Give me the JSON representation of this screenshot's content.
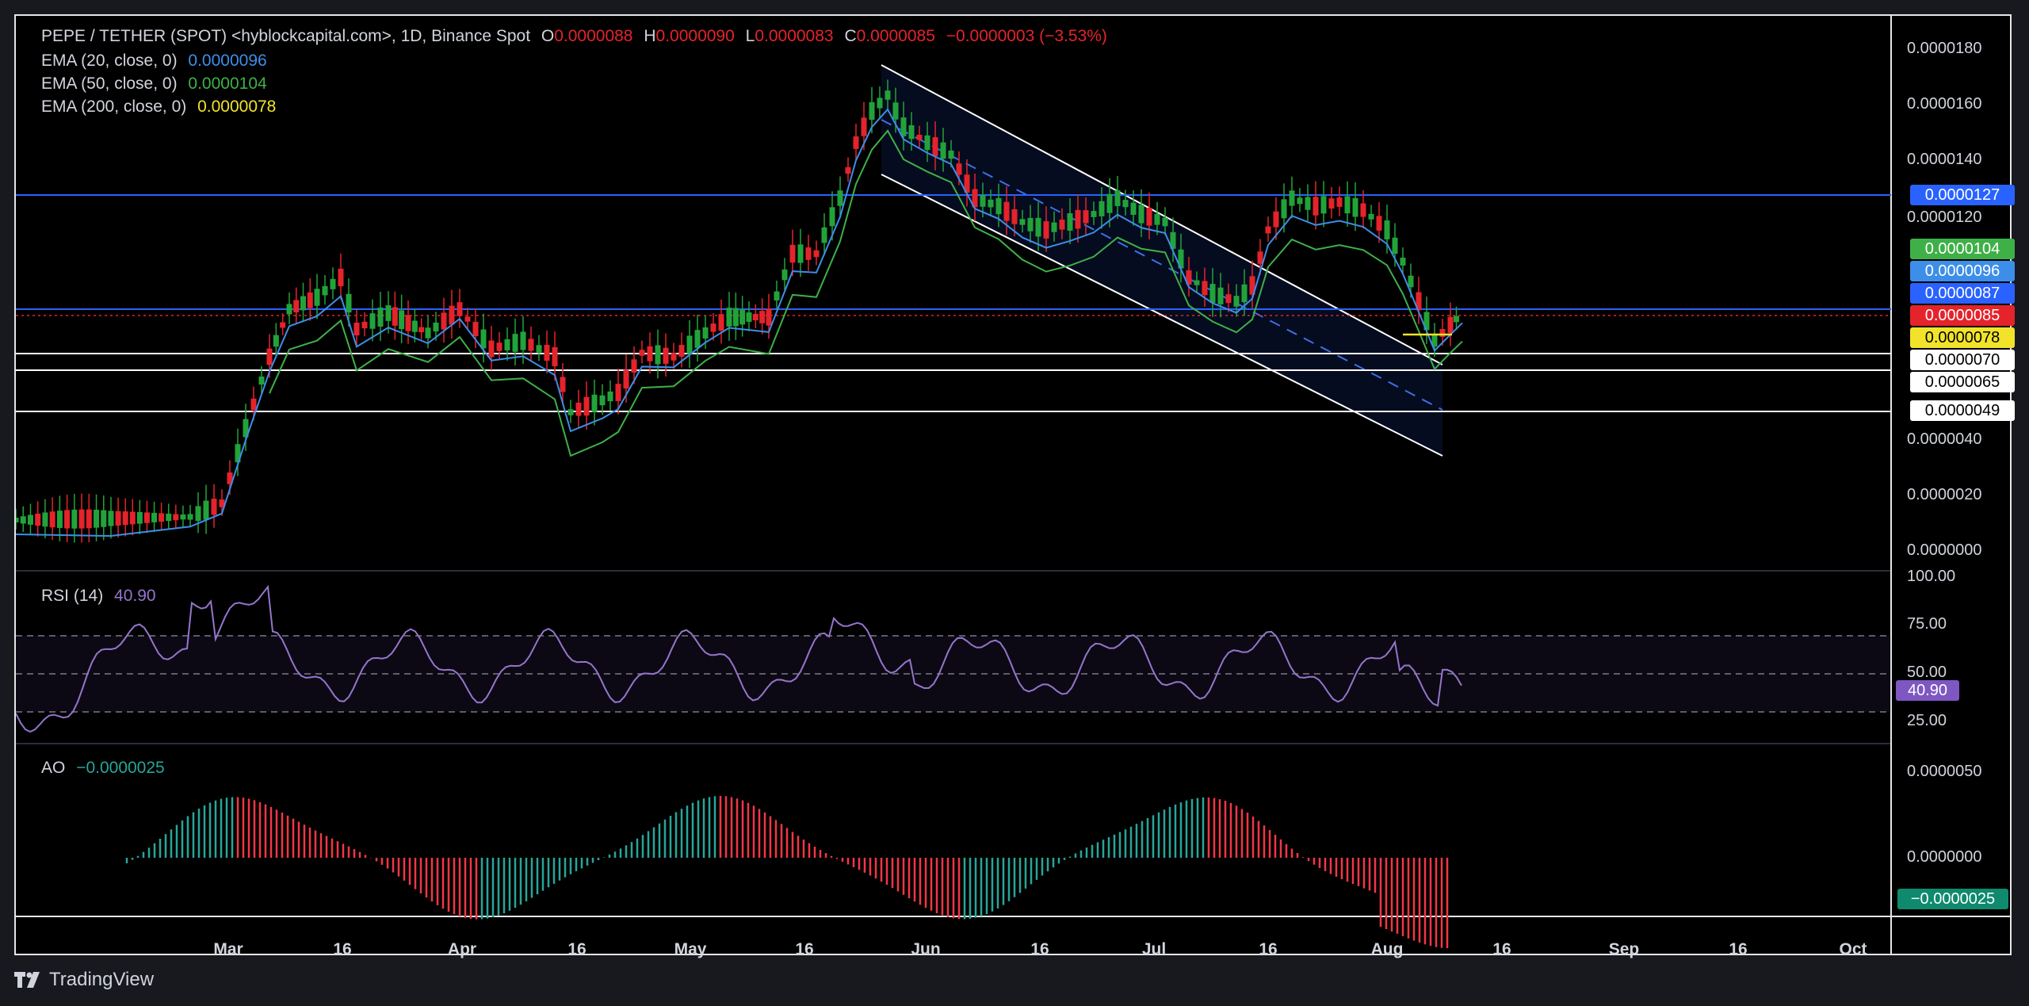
{
  "legend": {
    "symbol": "PEPE / TETHER (SPOT) <hyblockcapital.com>, 1D, Binance Spot",
    "o_label": "O",
    "o_value": "0.0000088",
    "h_label": "H",
    "h_value": "0.0000090",
    "l_label": "L",
    "l_value": "0.0000083",
    "c_label": "C",
    "c_value": "0.0000085",
    "change": "−0.0000003 (−3.53%)",
    "indicators": [
      {
        "label": "EMA (20, close, 0)",
        "value": "0.0000096",
        "color": "#3d8ee8"
      },
      {
        "label": "EMA (50, close, 0)",
        "value": "0.0000104",
        "color": "#3fb048"
      },
      {
        "label": "EMA (200, close, 0)",
        "value": "0.0000078",
        "color": "#f2e32a"
      }
    ]
  },
  "price_axis": {
    "ticks": [
      "0.0000180",
      "0.0000160",
      "0.0000140",
      "0.0000120",
      "0.0000040",
      "0.0000020",
      "0.0000000"
    ]
  },
  "price_labels": [
    {
      "text": "0.0000127",
      "bg": "#2962ff",
      "fg": "#ffffff"
    },
    {
      "text": "0.0000104",
      "bg": "#3fb048",
      "fg": "#ffffff"
    },
    {
      "text": "0.0000096",
      "bg": "#3d8ee8",
      "fg": "#ffffff"
    },
    {
      "text": "0.0000087",
      "bg": "#2962ff",
      "fg": "#ffffff"
    },
    {
      "text": "0.0000085",
      "bg": "#e5232b",
      "fg": "#ffffff"
    },
    {
      "text": "0.0000078",
      "bg": "#f2e32a",
      "fg": "#000000"
    },
    {
      "text": "0.0000070",
      "bg": "#ffffff",
      "fg": "#000000"
    },
    {
      "text": "0.0000065",
      "bg": "#ffffff",
      "fg": "#000000"
    },
    {
      "text": "0.0000049",
      "bg": "#ffffff",
      "fg": "#000000"
    }
  ],
  "rsi": {
    "label": "RSI (14)",
    "value": "40.90",
    "color": "#9575cd",
    "ticks": [
      "100.00",
      "75.00",
      "50.00",
      "25.00"
    ],
    "badge": "40.90"
  },
  "ao": {
    "label": "AO",
    "value": "−0.0000025",
    "ticks": [
      "0.0000050",
      "0.0000000"
    ],
    "badge": "−0.0000025",
    "up_color": "#26a69a",
    "down_color": "#f23645"
  },
  "time_axis": {
    "labels": [
      "Mar",
      "16",
      "Apr",
      "16",
      "May",
      "16",
      "Jun",
      "16",
      "Jul",
      "16",
      "Aug",
      "16",
      "Sep",
      "16",
      "Oct"
    ]
  },
  "branding": {
    "text": "TradingView"
  },
  "colors": {
    "bull": "#22a33a",
    "bear": "#e5232b",
    "ema20": "#3d8ee8",
    "ema50": "#3fb048",
    "ema200": "#f2e32a"
  }
}
